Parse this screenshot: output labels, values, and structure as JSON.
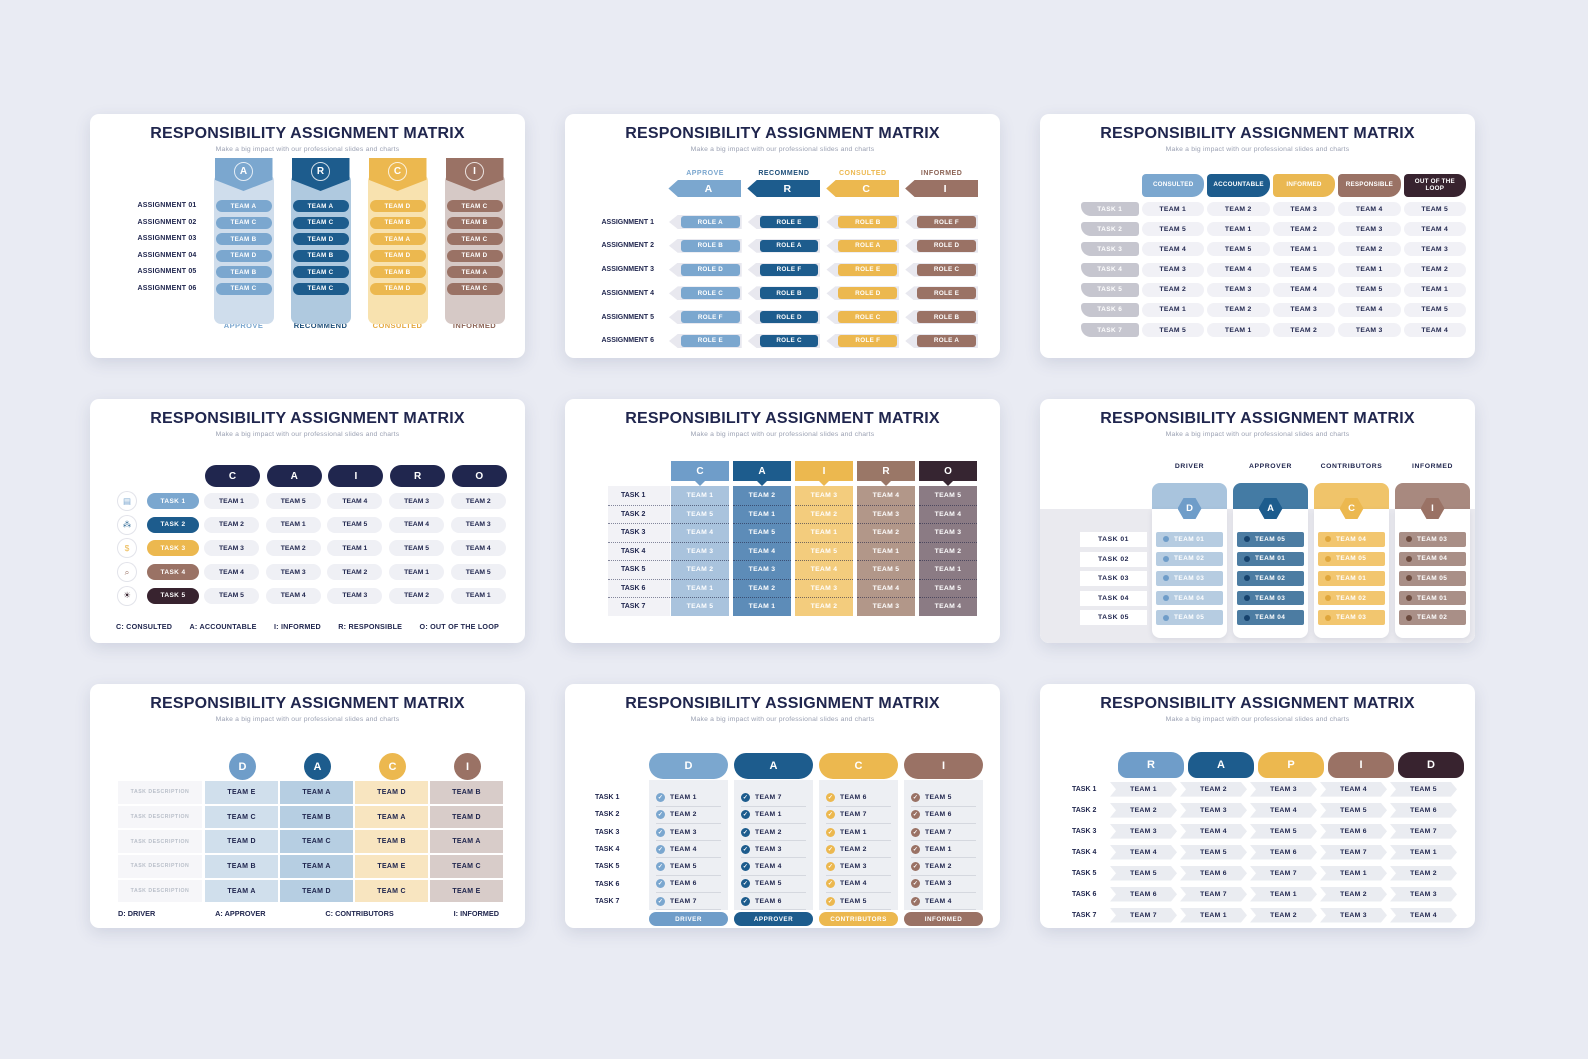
{
  "shared": {
    "title": "RESPONSIBILITY ASSIGNMENT MATRIX",
    "subtitle": "Make a big impact with our professional slides and charts"
  },
  "palette": {
    "page_background": "#E9EBF3",
    "card_background": "#FFFFFF",
    "navy_text": "#20264E",
    "light_blue": "#7BA7CF",
    "medium_blue": "#6F9DC9",
    "dark_blue": "#1D5C8D",
    "yellow": "#ECB84F",
    "brown": "#9A7265",
    "dark_maroon": "#38232F",
    "gray_cell": "#F1F1F6",
    "gray_pill": "#C6C6CF"
  },
  "slide1": {
    "rows": [
      "ASSIGNMENT 01",
      "ASSIGNMENT 02",
      "ASSIGNMENT 03",
      "ASSIGNMENT 04",
      "ASSIGNMENT 05",
      "ASSIGNMENT 06"
    ],
    "cols": [
      {
        "letter": "A",
        "footer": "APPROVE",
        "values": [
          "TEAM A",
          "TEAM C",
          "TEAM B",
          "TEAM D",
          "TEAM B",
          "TEAM C"
        ]
      },
      {
        "letter": "R",
        "footer": "RECOMMEND",
        "values": [
          "TEAM A",
          "TEAM C",
          "TEAM D",
          "TEAM B",
          "TEAM C",
          "TEAM C"
        ]
      },
      {
        "letter": "C",
        "footer": "CONSULTED",
        "values": [
          "TEAM D",
          "TEAM B",
          "TEAM A",
          "TEAM D",
          "TEAM B",
          "TEAM D"
        ]
      },
      {
        "letter": "I",
        "footer": "INFORMED",
        "values": [
          "TEAM C",
          "TEAM B",
          "TEAM C",
          "TEAM D",
          "TEAM A",
          "TEAM C"
        ]
      }
    ]
  },
  "slide2": {
    "headers": [
      {
        "label": "APPROVE",
        "letter": "A"
      },
      {
        "label": "RECOMMEND",
        "letter": "R"
      },
      {
        "label": "CONSULTED",
        "letter": "C"
      },
      {
        "label": "INFORMED",
        "letter": "I"
      }
    ],
    "rows": [
      {
        "label": "ASSIGNMENT 1",
        "cells": [
          "ROLE A",
          "ROLE E",
          "ROLE B",
          "ROLE F"
        ]
      },
      {
        "label": "ASSIGNMENT 2",
        "cells": [
          "ROLE B",
          "ROLE A",
          "ROLE A",
          "ROLE D"
        ]
      },
      {
        "label": "ASSIGNMENT 3",
        "cells": [
          "ROLE D",
          "ROLE F",
          "ROLE E",
          "ROLE C"
        ]
      },
      {
        "label": "ASSIGNMENT 4",
        "cells": [
          "ROLE C",
          "ROLE B",
          "ROLE D",
          "ROLE E"
        ]
      },
      {
        "label": "ASSIGNMENT 5",
        "cells": [
          "ROLE F",
          "ROLE D",
          "ROLE C",
          "ROLE B"
        ]
      },
      {
        "label": "ASSIGNMENT 6",
        "cells": [
          "ROLE E",
          "ROLE C",
          "ROLE F",
          "ROLE A"
        ]
      }
    ]
  },
  "slide3": {
    "headers": [
      "CONSULTED",
      "ACCOUNTABLE",
      "INFORMED",
      "RESPONSIBLE",
      "OUT OF THE LOOP"
    ],
    "rows": [
      {
        "label": "TASK 1",
        "cells": [
          "TEAM 1",
          "TEAM 2",
          "TEAM 3",
          "TEAM 4",
          "TEAM 5"
        ]
      },
      {
        "label": "TASK 2",
        "cells": [
          "TEAM 5",
          "TEAM 1",
          "TEAM 2",
          "TEAM 3",
          "TEAM 4"
        ]
      },
      {
        "label": "TASK 3",
        "cells": [
          "TEAM 4",
          "TEAM 5",
          "TEAM 1",
          "TEAM 2",
          "TEAM 3"
        ]
      },
      {
        "label": "TASK 4",
        "cells": [
          "TEAM 3",
          "TEAM 4",
          "TEAM 5",
          "TEAM 1",
          "TEAM 2"
        ]
      },
      {
        "label": "TASK 5",
        "cells": [
          "TEAM 2",
          "TEAM 3",
          "TEAM 4",
          "TEAM 5",
          "TEAM 1"
        ]
      },
      {
        "label": "TASK 6",
        "cells": [
          "TEAM 1",
          "TEAM 2",
          "TEAM 3",
          "TEAM 4",
          "TEAM 5"
        ]
      },
      {
        "label": "TASK 7",
        "cells": [
          "TEAM 5",
          "TEAM 1",
          "TEAM 2",
          "TEAM 3",
          "TEAM 4"
        ]
      }
    ]
  },
  "slide4": {
    "headers": [
      "C",
      "A",
      "I",
      "R",
      "O"
    ],
    "rows": [
      {
        "label": "TASK 1",
        "icon_name": "presentation-icon",
        "icon": "▤",
        "cells": [
          "TEAM 1",
          "TEAM 5",
          "TEAM 4",
          "TEAM 3",
          "TEAM 2"
        ]
      },
      {
        "label": "TASK 2",
        "icon_name": "network-icon",
        "icon": "⁂",
        "cells": [
          "TEAM 2",
          "TEAM 1",
          "TEAM 5",
          "TEAM 4",
          "TEAM 3"
        ]
      },
      {
        "label": "TASK 3",
        "icon_name": "dollar-coin-icon",
        "icon": "$",
        "cells": [
          "TEAM 3",
          "TEAM 2",
          "TEAM 1",
          "TEAM 5",
          "TEAM 4"
        ]
      },
      {
        "label": "TASK 4",
        "icon_name": "magnifier-icon",
        "icon": "⌕",
        "cells": [
          "TEAM 4",
          "TEAM 3",
          "TEAM 2",
          "TEAM 1",
          "TEAM 5"
        ]
      },
      {
        "label": "TASK 5",
        "icon_name": "idea-sun-icon",
        "icon": "☀",
        "cells": [
          "TEAM 5",
          "TEAM 4",
          "TEAM 3",
          "TEAM 2",
          "TEAM 1"
        ]
      }
    ],
    "legend": [
      "C: CONSULTED",
      "A: ACCOUNTABLE",
      "I: INFORMED",
      "R: RESPONSIBLE",
      "O: OUT OF THE LOOP"
    ]
  },
  "slide5": {
    "tasks": [
      "TASK 1",
      "TASK 2",
      "TASK 3",
      "TASK 4",
      "TASK 5",
      "TASK 6",
      "TASK 7"
    ],
    "cols": [
      {
        "letter": "C",
        "values": [
          "TEAM 1",
          "TEAM 5",
          "TEAM 4",
          "TEAM 3",
          "TEAM 2",
          "TEAM 1",
          "TEAM 5"
        ]
      },
      {
        "letter": "A",
        "values": [
          "TEAM 2",
          "TEAM 1",
          "TEAM 5",
          "TEAM 4",
          "TEAM 3",
          "TEAM 2",
          "TEAM 1"
        ]
      },
      {
        "letter": "I",
        "values": [
          "TEAM 3",
          "TEAM 2",
          "TEAM 1",
          "TEAM 5",
          "TEAM 4",
          "TEAM 3",
          "TEAM 2"
        ]
      },
      {
        "letter": "R",
        "values": [
          "TEAM 4",
          "TEAM 3",
          "TEAM 2",
          "TEAM 1",
          "TEAM 5",
          "TEAM 4",
          "TEAM 3"
        ]
      },
      {
        "letter": "O",
        "values": [
          "TEAM 5",
          "TEAM 4",
          "TEAM 3",
          "TEAM 2",
          "TEAM 1",
          "TEAM 5",
          "TEAM 4"
        ]
      }
    ]
  },
  "slide6": {
    "tasks": [
      "TASK 01",
      "TASK 02",
      "TASK 03",
      "TASK 04",
      "TASK 05"
    ],
    "cols": [
      {
        "role": "DRIVER",
        "letter": "D",
        "values": [
          "TEAM 01",
          "TEAM 02",
          "TEAM 03",
          "TEAM 04",
          "TEAM 05"
        ]
      },
      {
        "role": "APPROVER",
        "letter": "A",
        "values": [
          "TEAM 05",
          "TEAM 01",
          "TEAM 02",
          "TEAM 03",
          "TEAM 04"
        ]
      },
      {
        "role": "CONTRIBUTORS",
        "letter": "C",
        "values": [
          "TEAM 04",
          "TEAM 05",
          "TEAM 01",
          "TEAM 02",
          "TEAM 03"
        ]
      },
      {
        "role": "INFORMED",
        "letter": "I",
        "values": [
          "TEAM 03",
          "TEAM 04",
          "TEAM 05",
          "TEAM 01",
          "TEAM 02"
        ]
      }
    ]
  },
  "slide7": {
    "letters": [
      "D",
      "A",
      "C",
      "I"
    ],
    "rows": [
      {
        "label": "TASK DESCRIPTION",
        "cells": [
          "TEAM E",
          "TEAM A",
          "TEAM D",
          "TEAM B"
        ]
      },
      {
        "label": "TASK DESCRIPTION",
        "cells": [
          "TEAM C",
          "TEAM B",
          "TEAM A",
          "TEAM D"
        ]
      },
      {
        "label": "TASK DESCRIPTION",
        "cells": [
          "TEAM D",
          "TEAM C",
          "TEAM B",
          "TEAM A"
        ]
      },
      {
        "label": "TASK DESCRIPTION",
        "cells": [
          "TEAM B",
          "TEAM A",
          "TEAM E",
          "TEAM C"
        ]
      },
      {
        "label": "TASK DESCRIPTION",
        "cells": [
          "TEAM A",
          "TEAM D",
          "TEAM C",
          "TEAM E"
        ]
      }
    ],
    "legend": [
      "D: DRIVER",
      "A: APPROVER",
      "C: CONTRIBUTORS",
      "I: INFORMED"
    ]
  },
  "slide8": {
    "tasks": [
      "TASK 1",
      "TASK 2",
      "TASK 3",
      "TASK 4",
      "TASK 5",
      "TASK 6",
      "TASK 7"
    ],
    "check_glyph": "✓",
    "cols": [
      {
        "letter": "D",
        "footer": "DRIVER",
        "values": [
          "TEAM 1",
          "TEAM 2",
          "TEAM 3",
          "TEAM 4",
          "TEAM 5",
          "TEAM 6",
          "TEAM 7"
        ]
      },
      {
        "letter": "A",
        "footer": "APPROVER",
        "values": [
          "TEAM 7",
          "TEAM 1",
          "TEAM 2",
          "TEAM 3",
          "TEAM 4",
          "TEAM 5",
          "TEAM 6"
        ]
      },
      {
        "letter": "C",
        "footer": "CONTRIBUTORS",
        "values": [
          "TEAM 6",
          "TEAM 7",
          "TEAM 1",
          "TEAM 2",
          "TEAM 3",
          "TEAM 4",
          "TEAM 5"
        ]
      },
      {
        "letter": "I",
        "footer": "INFORMED",
        "values": [
          "TEAM 5",
          "TEAM 6",
          "TEAM 7",
          "TEAM 1",
          "TEAM 2",
          "TEAM 3",
          "TEAM 4"
        ]
      }
    ]
  },
  "slide9": {
    "headers": [
      "R",
      "A",
      "P",
      "I",
      "D"
    ],
    "rows": [
      {
        "label": "TASK 1",
        "cells": [
          "TEAM 1",
          "TEAM 2",
          "TEAM 3",
          "TEAM 4",
          "TEAM 5"
        ]
      },
      {
        "label": "TASK 2",
        "cells": [
          "TEAM 2",
          "TEAM 3",
          "TEAM 4",
          "TEAM 5",
          "TEAM 6"
        ]
      },
      {
        "label": "TASK 3",
        "cells": [
          "TEAM 3",
          "TEAM 4",
          "TEAM 5",
          "TEAM 6",
          "TEAM 7"
        ]
      },
      {
        "label": "TASK 4",
        "cells": [
          "TEAM 4",
          "TEAM 5",
          "TEAM 6",
          "TEAM 7",
          "TEAM 1"
        ]
      },
      {
        "label": "TASK 5",
        "cells": [
          "TEAM 5",
          "TEAM 6",
          "TEAM 7",
          "TEAM 1",
          "TEAM 2"
        ]
      },
      {
        "label": "TASK 6",
        "cells": [
          "TEAM 6",
          "TEAM 7",
          "TEAM 1",
          "TEAM 2",
          "TEAM 3"
        ]
      },
      {
        "label": "TASK 7",
        "cells": [
          "TEAM 7",
          "TEAM 1",
          "TEAM 2",
          "TEAM 3",
          "TEAM 4"
        ]
      }
    ]
  }
}
